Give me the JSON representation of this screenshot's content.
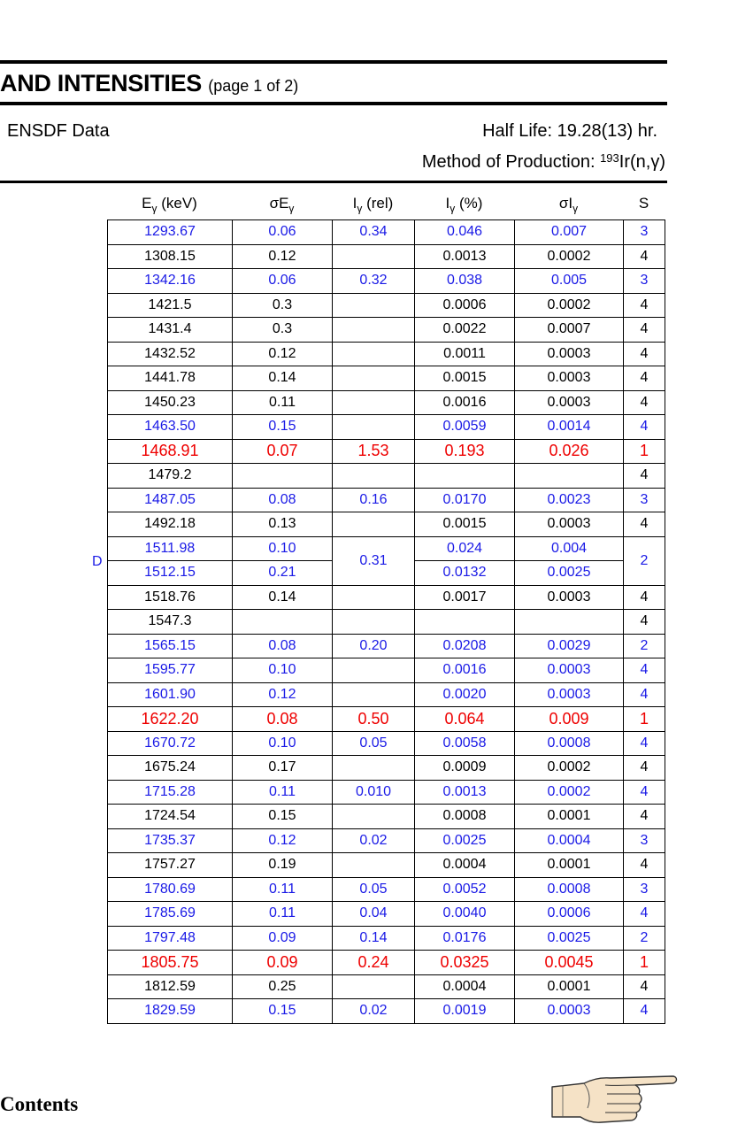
{
  "header": {
    "title": "AND INTENSITIES",
    "page": "(page 1 of 2)",
    "source": "ENSDF Data",
    "half_life": "Half Life: 19.28(13) hr.",
    "method_prefix": "Method of Production: ",
    "method_mass": "193",
    "method_reaction": "Ir(n,γ)"
  },
  "columns": {
    "energy": {
      "sym": "E",
      "sub": "γ",
      "tail": " (keV)"
    },
    "sigma_energy": {
      "sym": "σE",
      "sub": "γ",
      "tail": ""
    },
    "rel_intensity": {
      "sym": "I",
      "sub": "γ",
      "tail": " (rel)"
    },
    "pct_intensity": {
      "sym": "I",
      "sub": "γ",
      "tail": " (%)"
    },
    "sigma_intensity": {
      "sym": "σI",
      "sub": "γ",
      "tail": ""
    },
    "s": {
      "sym": "S",
      "sub": "",
      "tail": ""
    }
  },
  "doublet_marker": "D",
  "rows": [
    {
      "e": "1293.67",
      "se": "0.06",
      "irel": "0.34",
      "ipct": "0.046",
      "si": "0.007",
      "s": "3",
      "c": "b"
    },
    {
      "e": "1308.15",
      "se": "0.12",
      "irel": "",
      "ipct": "0.0013",
      "si": "0.0002",
      "s": "4",
      "c": "k"
    },
    {
      "e": "1342.16",
      "se": "0.06",
      "irel": "0.32",
      "ipct": "0.038",
      "si": "0.005",
      "s": "3",
      "c": "b"
    },
    {
      "e": "1421.5",
      "se": "0.3",
      "irel": "",
      "ipct": "0.0006",
      "si": "0.0002",
      "s": "4",
      "c": "k"
    },
    {
      "e": "1431.4",
      "se": "0.3",
      "irel": "",
      "ipct": "0.0022",
      "si": "0.0007",
      "s": "4",
      "c": "k"
    },
    {
      "e": "1432.52",
      "se": "0.12",
      "irel": "",
      "ipct": "0.0011",
      "si": "0.0003",
      "s": "4",
      "c": "k"
    },
    {
      "e": "1441.78",
      "se": "0.14",
      "irel": "",
      "ipct": "0.0015",
      "si": "0.0003",
      "s": "4",
      "c": "k"
    },
    {
      "e": "1450.23",
      "se": "0.11",
      "irel": "",
      "ipct": "0.0016",
      "si": "0.0003",
      "s": "4",
      "c": "k"
    },
    {
      "e": "1463.50",
      "se": "0.15",
      "irel": "",
      "ipct": "0.0059",
      "si": "0.0014",
      "s": "4",
      "c": "b"
    },
    {
      "e": "1468.91",
      "se": "0.07",
      "irel": "1.53",
      "ipct": "0.193",
      "si": "0.026",
      "s": "1",
      "c": "r"
    },
    {
      "e": "1479.2",
      "se": "",
      "irel": "",
      "ipct": "",
      "si": "",
      "s": "4",
      "c": "k"
    },
    {
      "e": "1487.05",
      "se": "0.08",
      "irel": "0.16",
      "ipct": "0.0170",
      "si": "0.0023",
      "s": "3",
      "c": "b"
    },
    {
      "e": "1492.18",
      "se": "0.13",
      "irel": "",
      "ipct": "0.0015",
      "si": "0.0003",
      "s": "4",
      "c": "k"
    },
    {
      "e": "1511.98",
      "se": "0.10",
      "irel": "0.31",
      "ipct": "0.024",
      "si": "0.004",
      "s": "2",
      "c": "b",
      "span_start": true
    },
    {
      "e": "1512.15",
      "se": "0.21",
      "irel": "",
      "ipct": "0.0132",
      "si": "0.0025",
      "s": "",
      "c": "b",
      "span_cont": true
    },
    {
      "e": "1518.76",
      "se": "0.14",
      "irel": "",
      "ipct": "0.0017",
      "si": "0.0003",
      "s": "4",
      "c": "k"
    },
    {
      "e": "1547.3",
      "se": "",
      "irel": "",
      "ipct": "",
      "si": "",
      "s": "4",
      "c": "k"
    },
    {
      "e": "1565.15",
      "se": "0.08",
      "irel": "0.20",
      "ipct": "0.0208",
      "si": "0.0029",
      "s": "2",
      "c": "b"
    },
    {
      "e": "1595.77",
      "se": "0.10",
      "irel": "",
      "ipct": "0.0016",
      "si": "0.0003",
      "s": "4",
      "c": "b"
    },
    {
      "e": "1601.90",
      "se": "0.12",
      "irel": "",
      "ipct": "0.0020",
      "si": "0.0003",
      "s": "4",
      "c": "b"
    },
    {
      "e": "1622.20",
      "se": "0.08",
      "irel": "0.50",
      "ipct": "0.064",
      "si": "0.009",
      "s": "1",
      "c": "r"
    },
    {
      "e": "1670.72",
      "se": "0.10",
      "irel": "0.05",
      "ipct": "0.0058",
      "si": "0.0008",
      "s": "4",
      "c": "b"
    },
    {
      "e": "1675.24",
      "se": "0.17",
      "irel": "",
      "ipct": "0.0009",
      "si": "0.0002",
      "s": "4",
      "c": "k"
    },
    {
      "e": "1715.28",
      "se": "0.11",
      "irel": "0.010",
      "ipct": "0.0013",
      "si": "0.0002",
      "s": "4",
      "c": "b"
    },
    {
      "e": "1724.54",
      "se": "0.15",
      "irel": "",
      "ipct": "0.0008",
      "si": "0.0001",
      "s": "4",
      "c": "k"
    },
    {
      "e": "1735.37",
      "se": "0.12",
      "irel": "0.02",
      "ipct": "0.0025",
      "si": "0.0004",
      "s": "3",
      "c": "b"
    },
    {
      "e": "1757.27",
      "se": "0.19",
      "irel": "",
      "ipct": "0.0004",
      "si": "0.0001",
      "s": "4",
      "c": "k"
    },
    {
      "e": "1780.69",
      "se": "0.11",
      "irel": "0.05",
      "ipct": "0.0052",
      "si": "0.0008",
      "s": "3",
      "c": "b"
    },
    {
      "e": "1785.69",
      "se": "0.11",
      "irel": "0.04",
      "ipct": "0.0040",
      "si": "0.0006",
      "s": "4",
      "c": "b"
    },
    {
      "e": "1797.48",
      "se": "0.09",
      "irel": "0.14",
      "ipct": "0.0176",
      "si": "0.0025",
      "s": "2",
      "c": "b"
    },
    {
      "e": "1805.75",
      "se": "0.09",
      "irel": "0.24",
      "ipct": "0.0325",
      "si": "0.0045",
      "s": "1",
      "c": "r"
    },
    {
      "e": "1812.59",
      "se": "0.25",
      "irel": "",
      "ipct": "0.0004",
      "si": "0.0001",
      "s": "4",
      "c": "k"
    },
    {
      "e": "1829.59",
      "se": "0.15",
      "irel": "0.02",
      "ipct": "0.0019",
      "si": "0.0003",
      "s": "4",
      "c": "b"
    }
  ],
  "footer": {
    "contents_link": "Contents",
    "next_icon": "pointing-hand-icon"
  },
  "colors": {
    "blue": "#1a1ae6",
    "red": "#ee0000",
    "black": "#000000"
  }
}
